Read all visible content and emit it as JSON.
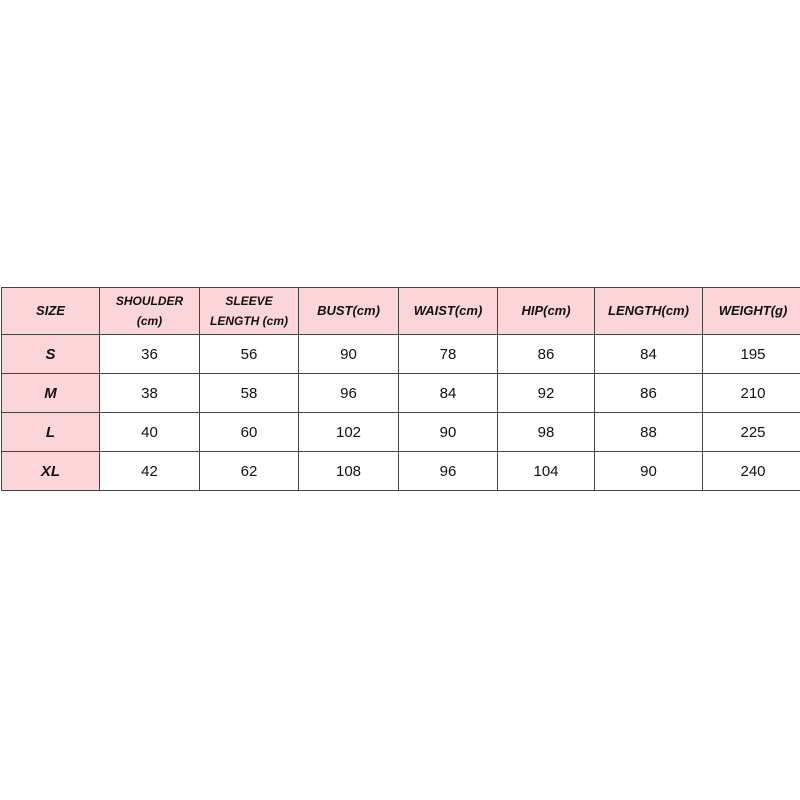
{
  "headers": [
    "SIZE",
    "SHOULDER (cm)",
    "SLEEVE LENGTH (cm)",
    "BUST(cm)",
    "WAIST(cm)",
    "HIP(cm)",
    "LENGTH(cm)",
    "WEIGHT(g)"
  ],
  "rows": [
    [
      "S",
      "36",
      "56",
      "90",
      "78",
      "86",
      "84",
      "195"
    ],
    [
      "M",
      "38",
      "58",
      "96",
      "84",
      "92",
      "86",
      "210"
    ],
    [
      "L",
      "40",
      "60",
      "102",
      "90",
      "98",
      "88",
      "225"
    ],
    [
      "XL",
      "42",
      "62",
      "108",
      "96",
      "104",
      "90",
      "240"
    ]
  ],
  "colors": {
    "header_bg": "#fcd5d8",
    "border": "#444444"
  }
}
